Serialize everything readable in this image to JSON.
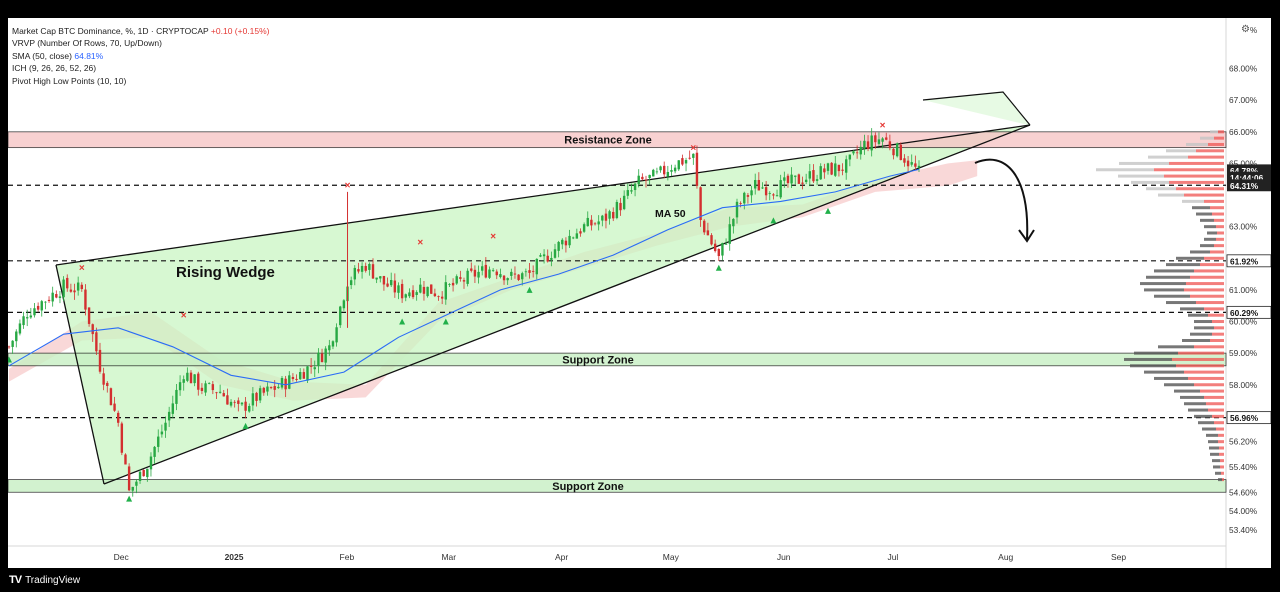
{
  "legend": {
    "title": "Market Cap BTC Dominance, %",
    "interval": "1D",
    "source": "CRYPTOCAP",
    "change": "+0.10 (+0.15%)",
    "vrvp": "VRVP (Number Of Rows, 70, Up/Down)",
    "sma_label": "SMA (50, close)",
    "sma_value": "64.81%",
    "ich": "ICH (9, 26, 26, 52, 26)",
    "pivot": "Pivot High Low Points (10, 10)"
  },
  "brand": {
    "name": "TradingView"
  },
  "chart_data": {
    "type": "line",
    "title": "Market Cap BTC Dominance, %",
    "unit": "%",
    "x_ticks": [
      "Dec",
      "2025",
      "Feb",
      "Mar",
      "Apr",
      "May",
      "Jun",
      "Jul",
      "Aug",
      "Sep"
    ],
    "y_ticks": [
      "68.00%",
      "67.00%",
      "66.00%",
      "65.00%",
      "63.00%",
      "61.00%",
      "60.00%",
      "59.00%",
      "58.00%",
      "56.20%",
      "55.40%",
      "54.60%",
      "54.00%",
      "53.40%"
    ],
    "ylim": [
      52.9,
      69.6
    ],
    "price_tags": [
      {
        "label": "64.78%",
        "style": "dark"
      },
      {
        "label": "14:44:06",
        "style": "dark"
      },
      {
        "label": "64.31%",
        "style": "dark"
      },
      {
        "label": "61.92%",
        "style": "light"
      },
      {
        "label": "60.29%",
        "style": "light"
      },
      {
        "label": "56.96%",
        "style": "light"
      }
    ],
    "zones": [
      {
        "name": "Resistance Zone",
        "from": 65.5,
        "to": 66.0,
        "color": "#f7c6c6"
      },
      {
        "name": "Support Zone",
        "from": 58.6,
        "to": 59.0,
        "color": "#c8f0c4"
      },
      {
        "name": "Support Zone",
        "from": 54.6,
        "to": 55.0,
        "color": "#c8f0c4"
      }
    ],
    "dashed_levels": [
      64.31,
      61.92,
      60.29,
      56.96
    ],
    "pattern_label": "Rising Wedge",
    "ma_label": "MA 50",
    "series": [
      {
        "name": "BTC Dominance",
        "color": "#d32f2f",
        "points": [
          [
            "Nov 1",
            59.2
          ],
          [
            "Nov 6",
            60.3
          ],
          [
            "Nov 11",
            60.7
          ],
          [
            "Nov 16",
            61.1
          ],
          [
            "Nov 21",
            61.0
          ],
          [
            "Nov 26",
            58.6
          ],
          [
            "Dec 1",
            56.8
          ],
          [
            "Dec 4",
            54.6
          ],
          [
            "Dec 9",
            55.5
          ],
          [
            "Dec 14",
            56.8
          ],
          [
            "Dec 19",
            58.4
          ],
          [
            "Dec 24",
            57.9
          ],
          [
            "Dec 29",
            57.8
          ],
          [
            "Jan 3",
            57.2
          ],
          [
            "Jan 8",
            57.6
          ],
          [
            "Jan 13",
            57.9
          ],
          [
            "Jan 18",
            58.2
          ],
          [
            "Jan 23",
            58.6
          ],
          [
            "Jan 28",
            59.2
          ],
          [
            "Feb 2",
            61.3
          ],
          [
            "Feb 7",
            61.8
          ],
          [
            "Feb 12",
            61.2
          ],
          [
            "Feb 17",
            60.9
          ],
          [
            "Feb 22",
            61.1
          ],
          [
            "Feb 27",
            60.9
          ],
          [
            "Mar 4",
            61.2
          ],
          [
            "Mar 9",
            61.5
          ],
          [
            "Mar 14",
            61.7
          ],
          [
            "Mar 19",
            61.4
          ],
          [
            "Mar 24",
            61.5
          ],
          [
            "Mar 29",
            62.1
          ],
          [
            "Apr 3",
            62.6
          ],
          [
            "Apr 8",
            63.0
          ],
          [
            "Apr 13",
            63.2
          ],
          [
            "Apr 18",
            63.7
          ],
          [
            "Apr 23",
            64.4
          ],
          [
            "Apr 28",
            64.6
          ],
          [
            "May 3",
            65.0
          ],
          [
            "May 8",
            65.2
          ],
          [
            "May 10",
            63.2
          ],
          [
            "May 15",
            62.0
          ],
          [
            "May 20",
            63.6
          ],
          [
            "May 25",
            64.3
          ],
          [
            "May 30",
            64.2
          ],
          [
            "Jun 4",
            64.4
          ],
          [
            "Jun 9",
            64.6
          ],
          [
            "Jun 14",
            64.8
          ],
          [
            "Jun 19",
            64.9
          ],
          [
            "Jun 24",
            65.6
          ],
          [
            "Jun 29",
            65.8
          ],
          [
            "Jul 4",
            65.3
          ],
          [
            "Jul 9",
            64.7
          ]
        ]
      },
      {
        "name": "SMA (50, close)",
        "color": "#2b6cf6",
        "points": [
          [
            "Nov 1",
            58.6
          ],
          [
            "Nov 16",
            59.6
          ],
          [
            "Dec 1",
            59.8
          ],
          [
            "Dec 16",
            59.2
          ],
          [
            "Jan 1",
            58.3
          ],
          [
            "Jan 16",
            58.0
          ],
          [
            "Feb 1",
            58.4
          ],
          [
            "Feb 16",
            59.5
          ],
          [
            "Mar 1",
            60.2
          ],
          [
            "Mar 16",
            61.0
          ],
          [
            "Apr 1",
            61.5
          ],
          [
            "Apr 16",
            62.1
          ],
          [
            "May 1",
            62.9
          ],
          [
            "May 16",
            63.6
          ],
          [
            "Jun 1",
            63.8
          ],
          [
            "Jun 16",
            64.1
          ],
          [
            "Jul 1",
            64.6
          ],
          [
            "Jul 9",
            64.81
          ]
        ]
      }
    ],
    "pivot_highs": [
      [
        "Nov 21",
        61.6
      ],
      [
        "Dec 19",
        60.1
      ],
      [
        "Feb 2",
        64.2
      ],
      [
        "Feb 22",
        62.4
      ],
      [
        "Mar 14",
        62.6
      ],
      [
        "May 8",
        65.4
      ],
      [
        "Jun 29",
        66.1
      ]
    ],
    "pivot_lows": [
      [
        "Nov 1",
        58.8
      ],
      [
        "Dec 4",
        54.4
      ],
      [
        "Jan 5",
        56.7
      ],
      [
        "Feb 17",
        60.0
      ],
      [
        "Mar 1",
        60.0
      ],
      [
        "Mar 24",
        61.0
      ],
      [
        "May 15",
        61.7
      ],
      [
        "May 30",
        63.2
      ],
      [
        "Jun 14",
        63.5
      ]
    ],
    "wedge": {
      "upper": [
        [
          56,
          265
        ],
        [
          1030,
          125
        ]
      ],
      "lower": [
        [
          104,
          484
        ],
        [
          1030,
          125
        ]
      ]
    },
    "volume_profile": {
      "levels": [
        [
          66.0,
          8,
          6
        ],
        [
          65.8,
          14,
          10
        ],
        [
          65.6,
          22,
          16
        ],
        [
          65.4,
          30,
          28
        ],
        [
          65.2,
          40,
          36
        ],
        [
          65.0,
          50,
          55
        ],
        [
          64.8,
          58,
          70
        ],
        [
          64.6,
          46,
          60
        ],
        [
          64.4,
          38,
          55
        ],
        [
          64.2,
          30,
          48
        ],
        [
          64.0,
          26,
          40
        ],
        [
          63.8,
          22,
          20
        ],
        [
          63.6,
          18,
          14
        ],
        [
          63.4,
          16,
          12
        ],
        [
          63.2,
          14,
          10
        ],
        [
          63.0,
          12,
          8
        ],
        [
          62.8,
          10,
          7
        ],
        [
          62.6,
          12,
          8
        ],
        [
          62.4,
          14,
          10
        ],
        [
          62.2,
          20,
          14
        ],
        [
          62.0,
          28,
          20
        ],
        [
          61.8,
          34,
          24
        ],
        [
          61.6,
          40,
          30
        ],
        [
          61.4,
          44,
          34
        ],
        [
          61.2,
          46,
          38
        ],
        [
          61.0,
          40,
          40
        ],
        [
          60.8,
          36,
          34
        ],
        [
          60.6,
          30,
          28
        ],
        [
          60.4,
          24,
          20
        ],
        [
          60.2,
          20,
          16
        ],
        [
          60.0,
          18,
          12
        ],
        [
          59.8,
          20,
          10
        ],
        [
          59.6,
          22,
          12
        ],
        [
          59.4,
          28,
          14
        ],
        [
          59.2,
          36,
          30
        ],
        [
          59.0,
          44,
          46
        ],
        [
          58.8,
          48,
          52
        ],
        [
          58.6,
          46,
          48
        ],
        [
          58.4,
          40,
          40
        ],
        [
          58.2,
          34,
          36
        ],
        [
          58.0,
          30,
          30
        ],
        [
          57.8,
          26,
          24
        ],
        [
          57.6,
          24,
          20
        ],
        [
          57.4,
          22,
          18
        ],
        [
          57.2,
          20,
          16
        ],
        [
          57.0,
          18,
          12
        ],
        [
          56.8,
          16,
          10
        ],
        [
          56.6,
          14,
          8
        ],
        [
          56.4,
          12,
          6
        ],
        [
          56.2,
          10,
          6
        ],
        [
          56.0,
          10,
          5
        ],
        [
          55.8,
          9,
          5
        ],
        [
          55.6,
          8,
          4
        ],
        [
          55.4,
          7,
          4
        ],
        [
          55.2,
          6,
          3
        ],
        [
          55.0,
          4,
          2
        ]
      ]
    }
  }
}
